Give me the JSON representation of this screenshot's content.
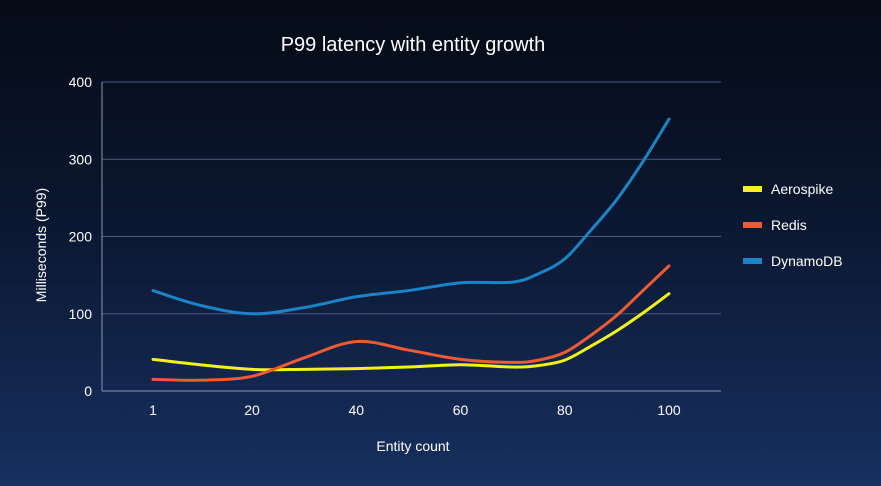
{
  "chart_data": {
    "type": "line",
    "title": "P99 latency with entity growth",
    "xlabel": "Entity count",
    "ylabel": "Milliseconds (P99)",
    "x": [
      1,
      10,
      20,
      30,
      40,
      50,
      60,
      70,
      75,
      80,
      85,
      90,
      95,
      100
    ],
    "x_ticks": [
      1,
      20,
      40,
      60,
      80,
      100
    ],
    "y_ticks": [
      0,
      100,
      200,
      300,
      400
    ],
    "ylim": [
      0,
      400
    ],
    "grid": true,
    "legend_position": "right",
    "series": [
      {
        "name": "Aerospike",
        "color": "#f2f21a",
        "values": [
          41,
          34,
          28,
          28,
          29,
          31,
          34,
          31,
          33,
          40,
          58,
          78,
          101,
          126
        ]
      },
      {
        "name": "Redis",
        "color": "#ef5a35",
        "values": [
          15,
          14,
          19,
          43,
          64,
          53,
          41,
          37,
          40,
          50,
          72,
          98,
          130,
          162
        ]
      },
      {
        "name": "DynamoDB",
        "color": "#1c84c6",
        "values": [
          130,
          111,
          100,
          108,
          122,
          130,
          140,
          141,
          152,
          171,
          208,
          248,
          297,
          352
        ]
      }
    ]
  }
}
